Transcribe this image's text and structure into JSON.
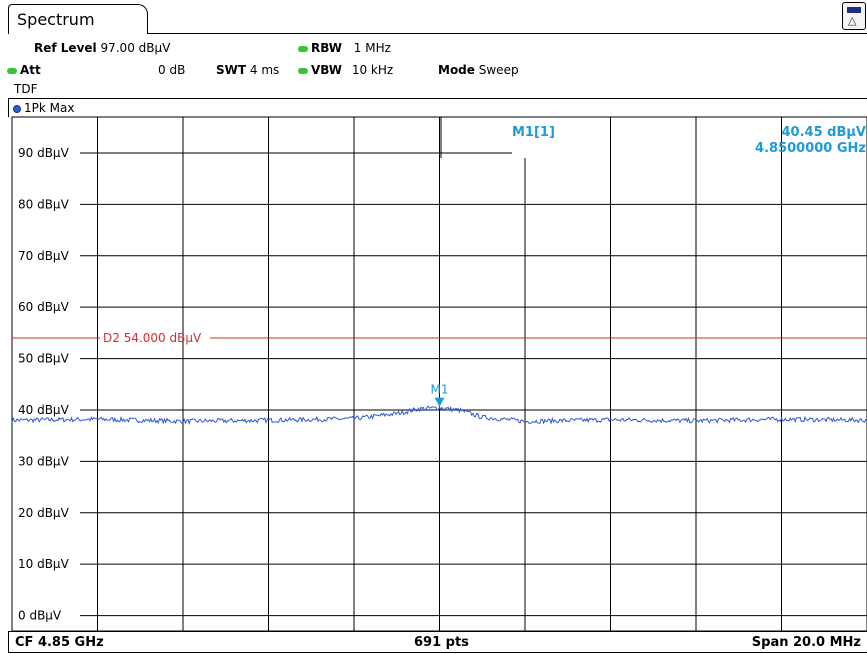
{
  "tab": {
    "label": "Spectrum"
  },
  "settings": {
    "ref_level_label": "Ref Level",
    "ref_level_value": "97.00 dBµV",
    "att_label": "Att",
    "att_value": "0 dB",
    "swt_label": "SWT",
    "swt_value": "4 ms",
    "rbw_label": "RBW",
    "rbw_value": "1 MHz",
    "vbw_label": "VBW",
    "vbw_value": "10 kHz",
    "mode_label": "Mode",
    "mode_value": "Sweep",
    "tdf": "TDF"
  },
  "status_colors": {
    "indicator": "#37c237",
    "trace": "#2f59d6",
    "display_line": "#d03030",
    "marker": "#1f9ad6"
  },
  "trace_label": "1Pk Max",
  "marker_readout": {
    "name": "M1[1]",
    "level": "40.45 dBµV",
    "frequency": "4.8500000 GHz"
  },
  "display_line": {
    "label": "D2",
    "value": "54.000 dBµV",
    "level": 54.0
  },
  "footer": {
    "center_freq": "CF 4.85 GHz",
    "points": "691 pts",
    "span": "Span 20.0 MHz"
  },
  "chart_data": {
    "type": "line",
    "xlabel": "",
    "ylabel": "",
    "xlim": [
      4.84,
      4.86
    ],
    "ylim": [
      -3,
      97
    ],
    "yticks": [
      0,
      10,
      20,
      30,
      40,
      50,
      60,
      70,
      80,
      90
    ],
    "ytick_labels": [
      "0 dBµV",
      "10 dBµV",
      "20 dBµV",
      "30 dBµV",
      "40 dBµV",
      "50 dBµV",
      "60 dBµV",
      "70 dBµV",
      "80 dBµV",
      "90 dBµV"
    ],
    "grid": true,
    "x_divisions": 10,
    "series": [
      {
        "x": [
          4.84,
          4.842,
          4.844,
          4.846,
          4.848,
          4.849,
          4.8495,
          4.85,
          4.8505,
          4.851,
          4.852,
          4.854,
          4.856,
          4.858,
          4.86
        ],
        "values": [
          38.0,
          38.2,
          37.8,
          38.0,
          38.3,
          39.3,
          40.2,
          40.45,
          39.9,
          38.6,
          37.8,
          38.1,
          37.9,
          38.2,
          38.0
        ]
      }
    ],
    "marker": {
      "label": "M1",
      "x": 4.85,
      "y": 40.45
    }
  }
}
